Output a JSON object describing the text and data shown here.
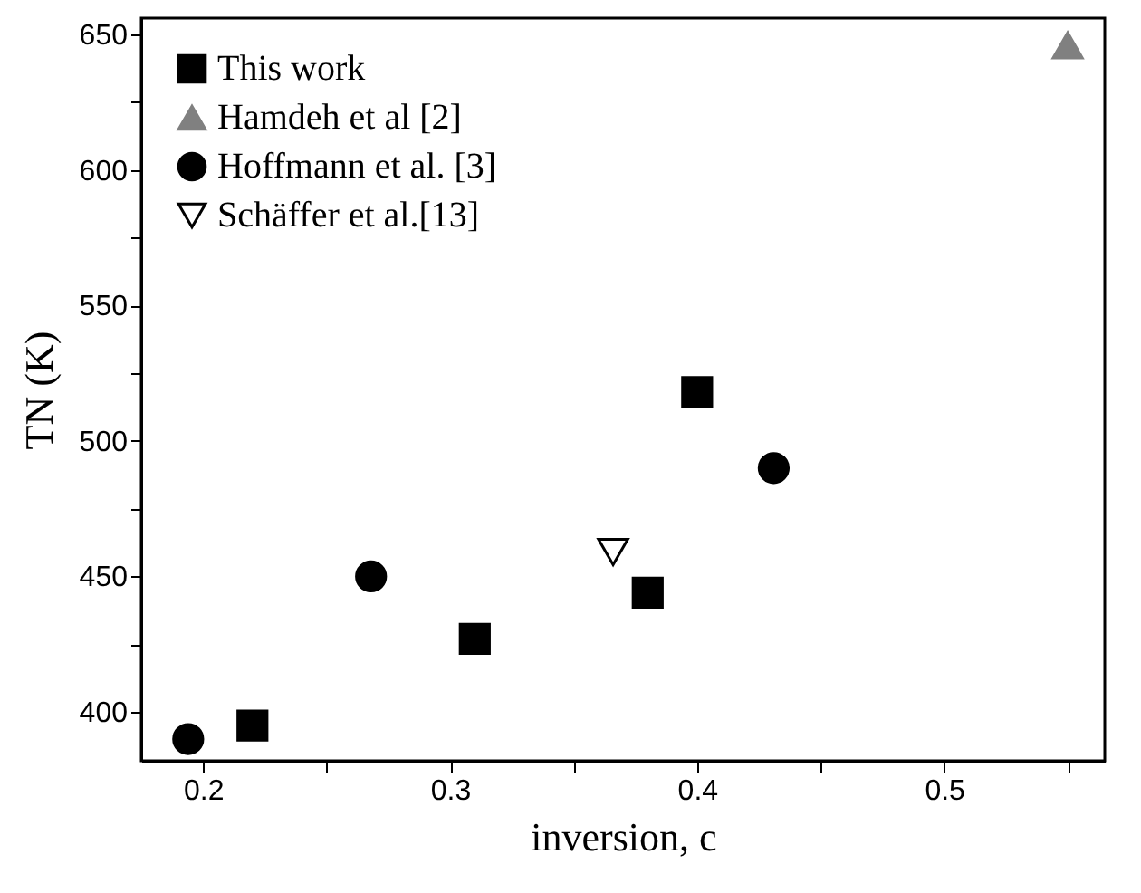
{
  "chart_data": {
    "type": "scatter",
    "xlabel": "inversion, c",
    "ylabel": "TN (K)",
    "xlim": [
      0.175,
      0.565
    ],
    "ylim": [
      382,
      656
    ],
    "xticks": [
      0.2,
      {
        "value": 0.25,
        "label": null
      },
      0.3,
      {
        "value": 0.35,
        "label": null
      },
      0.4,
      {
        "value": 0.45,
        "label": null
      },
      0.5,
      {
        "value": 0.55,
        "label": null
      }
    ],
    "yticks": [
      400,
      {
        "value": 425,
        "label": null
      },
      450,
      {
        "value": 475,
        "label": null
      },
      500,
      {
        "value": 525,
        "label": null
      },
      550,
      {
        "value": 575,
        "label": null
      },
      600,
      {
        "value": 625,
        "label": null
      },
      650
    ],
    "grid": false,
    "legend": "top left",
    "series": [
      {
        "name": "This work",
        "color": "#000000",
        "marker": "square",
        "x": [
          0.22,
          0.31,
          0.38,
          0.4
        ],
        "values": [
          395,
          427,
          444,
          518
        ]
      },
      {
        "name": "Hamdeh et al [2]",
        "color": "#808080",
        "marker": "triangle",
        "x": [
          0.55
        ],
        "values": [
          646
        ]
      },
      {
        "name": "Hoffmann et al. [3]",
        "color": "#000000",
        "marker": "circle",
        "x": [
          0.194,
          0.268,
          0.431
        ],
        "values": [
          390,
          450,
          490
        ]
      },
      {
        "name": "Schäffer et al.[13]",
        "color": "#000000",
        "marker": "triangle-down-open",
        "x": [
          0.366
        ],
        "values": [
          459
        ]
      }
    ]
  }
}
